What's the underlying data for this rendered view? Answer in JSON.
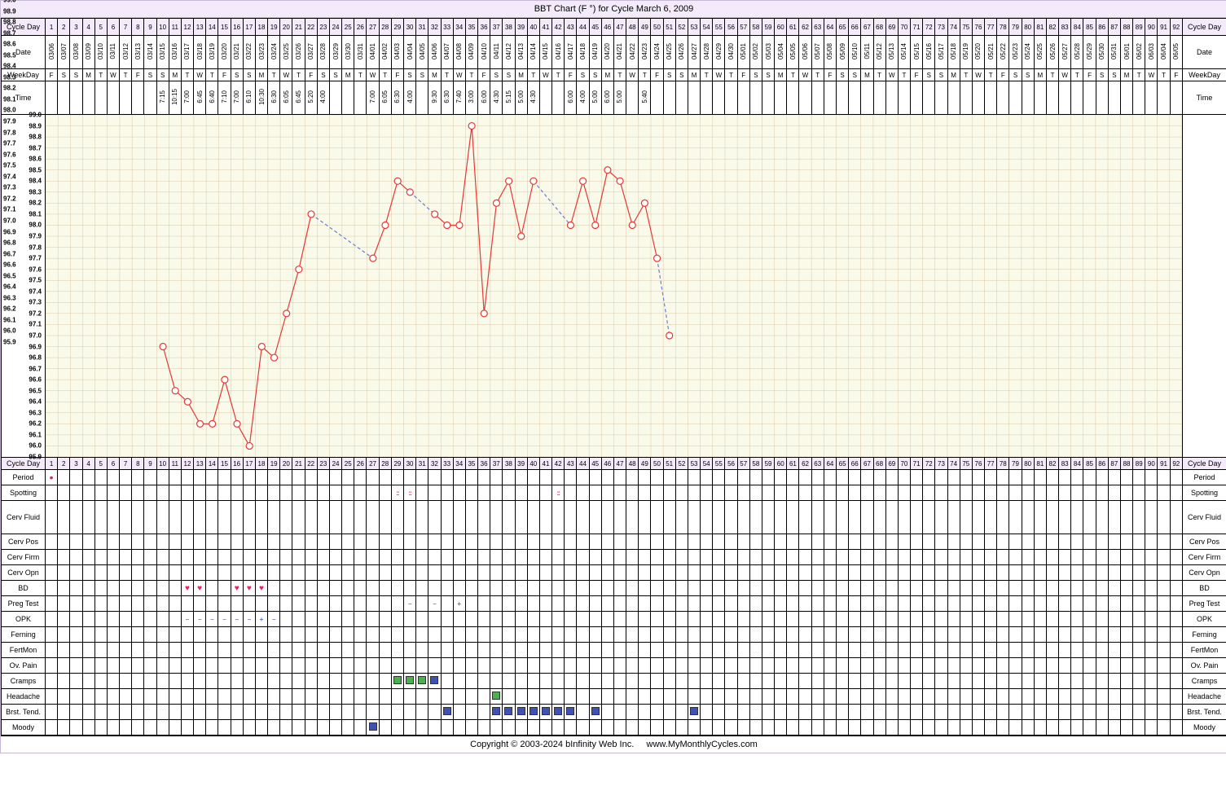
{
  "title": "BBT Chart (F °) for Cycle March 6, 2009",
  "footer_left": "Copyright © 2003-2024 bInfinity Web Inc.",
  "footer_right": "www.MyMonthlyCycles.com",
  "num_days": 92,
  "labels": {
    "cycle_day": "Cycle Day",
    "date": "Date",
    "weekday": "WeekDay",
    "time": "Time",
    "period": "Period",
    "spotting": "Spotting",
    "cerv_fluid": "Cerv Fluid",
    "cerv_pos": "Cerv Pos",
    "cerv_firm": "Cerv Firm",
    "cerv_opn": "Cerv Opn",
    "bd": "BD",
    "preg_test": "Preg Test",
    "opk": "OPK",
    "ferning": "Ferning",
    "fertmon": "FertMon",
    "ov_pain": "Ov. Pain",
    "cramps": "Cramps",
    "headache": "Headache",
    "brst_tend": "Brst. Tend.",
    "moody": "Moody"
  },
  "dates": [
    "03/06",
    "03/07",
    "03/08",
    "03/09",
    "03/10",
    "03/11",
    "03/12",
    "03/13",
    "03/14",
    "03/15",
    "03/16",
    "03/17",
    "03/18",
    "03/19",
    "03/20",
    "03/21",
    "03/22",
    "03/23",
    "03/24",
    "03/25",
    "03/26",
    "03/27",
    "03/28",
    "03/29",
    "03/30",
    "03/31",
    "04/01",
    "04/02",
    "04/03",
    "04/04",
    "04/05",
    "04/06",
    "04/07",
    "04/08",
    "04/09",
    "04/10",
    "04/11",
    "04/12",
    "04/13",
    "04/14",
    "04/15",
    "04/16",
    "04/17",
    "04/18",
    "04/19",
    "04/20",
    "04/21",
    "04/22",
    "04/23",
    "04/24",
    "04/25",
    "04/26",
    "04/27",
    "04/28",
    "04/29",
    "04/30",
    "05/01",
    "05/02",
    "05/03",
    "05/04",
    "05/05",
    "05/06",
    "05/07",
    "05/08",
    "05/09",
    "05/10",
    "05/11",
    "05/12",
    "05/13",
    "05/14",
    "05/15",
    "05/16",
    "05/17",
    "05/18",
    "05/19",
    "05/20",
    "05/21",
    "05/22",
    "05/23",
    "05/24",
    "05/25",
    "05/26",
    "05/27",
    "05/28",
    "05/29",
    "05/30",
    "05/31",
    "06/01",
    "06/02",
    "06/03",
    "06/04",
    "06/05"
  ],
  "weekdays": [
    "F",
    "S",
    "S",
    "M",
    "T",
    "W",
    "T",
    "F",
    "S",
    "S",
    "M",
    "T",
    "W",
    "T",
    "F",
    "S",
    "S",
    "M",
    "T",
    "W",
    "T",
    "F",
    "S",
    "S",
    "M",
    "T",
    "W",
    "T",
    "F",
    "S",
    "S",
    "M",
    "T",
    "W",
    "T",
    "F",
    "S",
    "S",
    "M",
    "T",
    "W",
    "T",
    "F",
    "S",
    "S",
    "M",
    "T",
    "W",
    "T",
    "F",
    "S",
    "S",
    "M",
    "T",
    "W",
    "T",
    "F",
    "S",
    "S",
    "M",
    "T",
    "W",
    "T",
    "F",
    "S",
    "S",
    "M",
    "T",
    "W",
    "T",
    "F",
    "S",
    "S",
    "M",
    "T",
    "W",
    "T",
    "F",
    "S",
    "S",
    "M",
    "T",
    "W",
    "T",
    "F",
    "S",
    "S",
    "M",
    "T",
    "W",
    "T",
    "F"
  ],
  "times": {
    "10": "7:15",
    "11": "10:15",
    "12": "7:00",
    "13": "6:45",
    "14": "6:40",
    "15": "7:10",
    "16": "7:00",
    "17": "6:10",
    "18": "10:30",
    "19": "6:30",
    "20": "6:05",
    "21": "6:45",
    "22": "5:20",
    "23": "4:00",
    "27": "7:00",
    "28": "6:05",
    "29": "6:30",
    "30": "4:00",
    "32": "9:30",
    "33": "6:30",
    "34": "7:40",
    "35": "3:00",
    "36": "6:00",
    "37": "4:30",
    "38": "5:15",
    "39": "5:00",
    "40": "4:30",
    "43": "6:00",
    "44": "4:00",
    "45": "5:00",
    "46": "6:00",
    "47": "5:00",
    "49": "5:40"
  },
  "chart": {
    "type": "line",
    "ymin": 95.9,
    "ymax": 99.0,
    "ytick_step": 0.1,
    "background_color": "#fafaea",
    "grid_color": "#d8c8a8",
    "line_color": "#e53935",
    "dashed_color": "#6b7bd8",
    "marker_color": "#e53935",
    "marker_size": 4,
    "segments": [
      {
        "kind": "solid",
        "points": [
          [
            10,
            96.9
          ],
          [
            11,
            96.5
          ],
          [
            12,
            96.4
          ],
          [
            13,
            96.2
          ],
          [
            14,
            96.2
          ],
          [
            15,
            96.6
          ],
          [
            16,
            96.2
          ],
          [
            17,
            96.0
          ],
          [
            18,
            96.9
          ],
          [
            19,
            96.8
          ],
          [
            20,
            97.2
          ],
          [
            21,
            97.6
          ],
          [
            22,
            98.1
          ]
        ]
      },
      {
        "kind": "dashed",
        "points": [
          [
            22,
            98.1
          ],
          [
            27,
            97.7
          ]
        ]
      },
      {
        "kind": "solid",
        "points": [
          [
            27,
            97.7
          ],
          [
            28,
            98.0
          ],
          [
            29,
            98.4
          ],
          [
            30,
            98.3
          ]
        ]
      },
      {
        "kind": "dashed",
        "points": [
          [
            30,
            98.3
          ],
          [
            32,
            98.1
          ]
        ]
      },
      {
        "kind": "solid",
        "points": [
          [
            32,
            98.1
          ],
          [
            33,
            98.0
          ],
          [
            34,
            98.0
          ],
          [
            35,
            98.9
          ],
          [
            36,
            97.2
          ],
          [
            37,
            98.2
          ],
          [
            38,
            98.4
          ],
          [
            39,
            97.9
          ],
          [
            40,
            98.4
          ]
        ]
      },
      {
        "kind": "dashed",
        "points": [
          [
            40,
            98.4
          ],
          [
            43,
            98.0
          ]
        ]
      },
      {
        "kind": "solid",
        "points": [
          [
            43,
            98.0
          ],
          [
            44,
            98.4
          ],
          [
            45,
            98.0
          ],
          [
            46,
            98.5
          ],
          [
            47,
            98.4
          ],
          [
            48,
            98.0
          ],
          [
            49,
            98.2
          ],
          [
            50,
            97.7
          ]
        ]
      },
      {
        "kind": "dashed",
        "points": [
          [
            50,
            97.7
          ],
          [
            51,
            97.0
          ]
        ]
      }
    ]
  },
  "track": {
    "period": {
      "1": "dot"
    },
    "spotting": {
      "29": "dots",
      "30": "dots",
      "42": "dots"
    },
    "bd": {
      "12": "heart",
      "13": "heart",
      "16": "heart",
      "17": "heart",
      "18": "heart"
    },
    "preg_test": {
      "30": "minus",
      "32": "minus",
      "34": "plus"
    },
    "opk": {
      "12": "minus",
      "13": "minus",
      "14": "minus",
      "15": "minus",
      "16": "minus",
      "17": "minus",
      "18": "plus",
      "19": "minus"
    },
    "cramps": {
      "29": "g",
      "30": "g",
      "31": "g",
      "32": "b"
    },
    "headache": {
      "37": "g"
    },
    "brst_tend": {
      "33": "b",
      "37": "b",
      "38": "b",
      "39": "b",
      "40": "b",
      "41": "b",
      "42": "b",
      "43": "b",
      "45": "b",
      "53": "b"
    },
    "moody": {
      "27": "b"
    }
  }
}
